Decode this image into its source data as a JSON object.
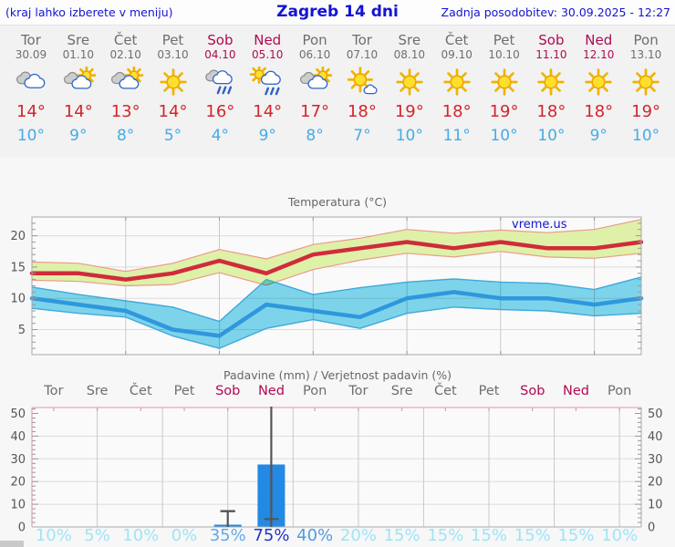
{
  "header": {
    "note": "(kraj lahko izberete v meniju)",
    "title": "Zagreb 14 dni",
    "updated": "Zadnja posodobitev: 30.09.2025 - 12:27"
  },
  "colors": {
    "accent_blue": "#1414d2",
    "weekday": "#6e6e6e",
    "weekend": "#b00a50",
    "temp_high": "#d2252e",
    "temp_low": "#45abe6",
    "bar": "#2289e4",
    "prob_low": "#9fe4f6",
    "prob_mid": "#4f9de2",
    "prob_mid2": "#63aae9",
    "prob_high": "#2136c9"
  },
  "forecast": {
    "days": [
      {
        "name": "Tor",
        "date": "30.09",
        "icon": "cloudy",
        "high": "14°",
        "low": "10°",
        "weekend": false
      },
      {
        "name": "Sre",
        "date": "01.10",
        "icon": "partly",
        "high": "14°",
        "low": "9°",
        "weekend": false
      },
      {
        "name": "Čet",
        "date": "02.10",
        "icon": "partly",
        "high": "13°",
        "low": "8°",
        "weekend": false
      },
      {
        "name": "Pet",
        "date": "03.10",
        "icon": "sunny",
        "high": "14°",
        "low": "5°",
        "weekend": false
      },
      {
        "name": "Sob",
        "date": "04.10",
        "icon": "rain",
        "high": "16°",
        "low": "4°",
        "weekend": true
      },
      {
        "name": "Ned",
        "date": "05.10",
        "icon": "sun-rain",
        "high": "14°",
        "low": "9°",
        "weekend": true
      },
      {
        "name": "Pon",
        "date": "06.10",
        "icon": "partly",
        "high": "17°",
        "low": "8°",
        "weekend": false
      },
      {
        "name": "Tor",
        "date": "07.10",
        "icon": "sun-small-cloud",
        "high": "18°",
        "low": "7°",
        "weekend": false
      },
      {
        "name": "Sre",
        "date": "08.10",
        "icon": "sunny",
        "high": "19°",
        "low": "10°",
        "weekend": false
      },
      {
        "name": "Čet",
        "date": "09.10",
        "icon": "sunny",
        "high": "18°",
        "low": "11°",
        "weekend": false
      },
      {
        "name": "Pet",
        "date": "10.10",
        "icon": "sunny",
        "high": "19°",
        "low": "10°",
        "weekend": false
      },
      {
        "name": "Sob",
        "date": "11.10",
        "icon": "sunny",
        "high": "18°",
        "low": "10°",
        "weekend": true
      },
      {
        "name": "Ned",
        "date": "12.10",
        "icon": "sunny",
        "high": "18°",
        "low": "9°",
        "weekend": true
      },
      {
        "name": "Pon",
        "date": "13.10",
        "icon": "sunny",
        "high": "19°",
        "low": "10°",
        "weekend": false
      }
    ]
  },
  "chart_data": [
    {
      "type": "area",
      "title": "Temperatura (°C)",
      "watermark": "vreme.us",
      "ylim": [
        1,
        23
      ],
      "yticks": [
        5,
        10,
        15,
        20
      ],
      "categories": [
        "Tor 30.09",
        "Sre 01.10",
        "Čet 02.10",
        "Pet 03.10",
        "Sob 04.10",
        "Ned 05.10",
        "Pon 06.10",
        "Tor 07.10",
        "Sre 08.10",
        "Čet 09.10",
        "Pet 10.10",
        "Sob 11.10",
        "Ned 12.10",
        "Pon 13.10"
      ],
      "series": [
        {
          "name": "max",
          "color": "#d02b3b",
          "values": [
            14,
            14,
            13,
            14,
            16,
            14,
            17,
            18,
            19,
            18,
            19,
            18,
            18,
            19
          ]
        },
        {
          "name": "max_upper",
          "color": "#ec9a88",
          "values": [
            15.8,
            15.6,
            14.3,
            15.6,
            17.8,
            16.3,
            18.6,
            19.6,
            21.0,
            20.4,
            20.9,
            20.5,
            21.0,
            22.6
          ]
        },
        {
          "name": "max_lower",
          "color": "#ec9a88",
          "values": [
            12.9,
            12.7,
            12.0,
            12.2,
            14.1,
            12.1,
            14.6,
            16.1,
            17.2,
            16.6,
            17.5,
            16.6,
            16.4,
            17.2
          ]
        },
        {
          "name": "min",
          "color": "#2f97dd",
          "values": [
            10,
            9,
            8,
            5,
            4,
            9,
            8,
            7,
            10,
            11,
            10,
            10,
            9,
            10
          ]
        },
        {
          "name": "min_upper",
          "color": "#3fa8dd",
          "values": [
            11.8,
            10.6,
            9.6,
            8.6,
            6.3,
            13.0,
            10.6,
            11.7,
            12.6,
            13.1,
            12.6,
            12.4,
            11.4,
            13.4
          ]
        },
        {
          "name": "min_lower",
          "color": "#3fa8dd",
          "values": [
            8.4,
            7.6,
            7.0,
            4.0,
            2.0,
            5.2,
            6.6,
            5.2,
            7.6,
            8.6,
            8.2,
            8.0,
            7.2,
            7.6
          ]
        }
      ],
      "band_fill_max": "#dff0a8",
      "band_fill_min": "#7fd9ef"
    },
    {
      "type": "bar",
      "title": "Padavine (mm) / Verjetnost padavin (%)",
      "ylim": [
        0,
        52.6
      ],
      "yticks": [
        0,
        10,
        20,
        30,
        40,
        50
      ],
      "categories": [
        "Tor",
        "Sre",
        "Čet",
        "Pet",
        "Sob",
        "Ned",
        "Pon",
        "Tor",
        "Sre",
        "Čet",
        "Pet",
        "Sob",
        "Ned",
        "Pon"
      ],
      "weekend_flags": [
        false,
        false,
        false,
        false,
        true,
        true,
        false,
        false,
        false,
        false,
        false,
        true,
        true,
        false
      ],
      "bars_mm": [
        0,
        0,
        0,
        0,
        1,
        27.5,
        0,
        0,
        0,
        0,
        0,
        0,
        0,
        0
      ],
      "whiskers": [
        null,
        null,
        null,
        null,
        {
          "from": 0,
          "to": 7,
          "cap": 7
        },
        {
          "from": 0,
          "to": 53,
          "cap": 3.5
        },
        null,
        null,
        null,
        null,
        null,
        null,
        null,
        null
      ],
      "probabilities": [
        {
          "label": "10%",
          "tier": "low"
        },
        {
          "label": "5%",
          "tier": "low"
        },
        {
          "label": "10%",
          "tier": "low"
        },
        {
          "label": "0%",
          "tier": "low"
        },
        {
          "label": "35%",
          "tier": "mid2"
        },
        {
          "label": "75%",
          "tier": "high"
        },
        {
          "label": "40%",
          "tier": "mid"
        },
        {
          "label": "20%",
          "tier": "low"
        },
        {
          "label": "15%",
          "tier": "low"
        },
        {
          "label": "15%",
          "tier": "low"
        },
        {
          "label": "15%",
          "tier": "low"
        },
        {
          "label": "15%",
          "tier": "low"
        },
        {
          "label": "15%",
          "tier": "low"
        },
        {
          "label": "10%",
          "tier": "low"
        }
      ]
    }
  ]
}
